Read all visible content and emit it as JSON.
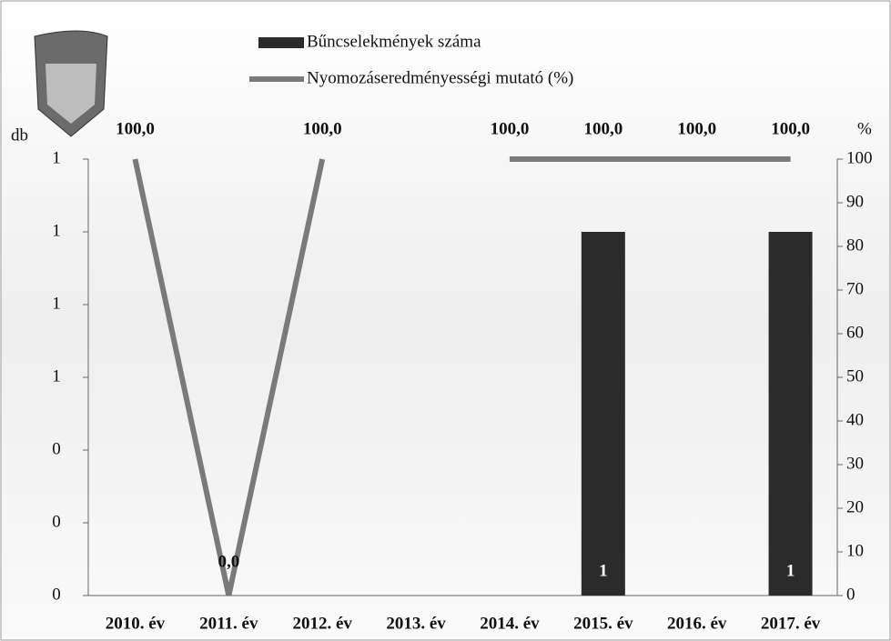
{
  "chart_data": {
    "type": "bar",
    "categories": [
      "2010. év",
      "2011. év",
      "2012. év",
      "2013. év",
      "2014. év",
      "2015. év",
      "2016. év",
      "2017. év"
    ],
    "series": [
      {
        "name": "Bűncselekmények száma",
        "color": "#2b2b2b",
        "values": [
          0,
          0,
          0,
          0,
          0,
          1,
          0,
          1
        ],
        "value_labels": [
          null,
          null,
          null,
          null,
          null,
          "1",
          null,
          "1"
        ]
      },
      {
        "name": "Nyomozáseredményességi mutató (%)",
        "type": "line",
        "axis": "y2",
        "color": "#7a7a7a",
        "values": [
          100,
          0,
          100,
          null,
          100,
          100,
          100,
          100
        ],
        "value_labels": [
          "100,0",
          "0,0",
          "100,0",
          null,
          "100,0",
          "100,0",
          "100,0",
          "100,0"
        ]
      }
    ],
    "ylabel": "db",
    "y2label": "%",
    "ylim": [
      0,
      1.2
    ],
    "yticks": [
      {
        "value": 0,
        "label": "0"
      },
      {
        "value": 0.2,
        "label": "0"
      },
      {
        "value": 0.4,
        "label": "0"
      },
      {
        "value": 0.6,
        "label": "1"
      },
      {
        "value": 0.8,
        "label": "1"
      },
      {
        "value": 1.0,
        "label": "1"
      },
      {
        "value": 1.2,
        "label": "1"
      }
    ],
    "y2lim": [
      0,
      100
    ],
    "y2ticks": [
      0,
      10,
      20,
      30,
      40,
      50,
      60,
      70,
      80,
      90,
      100
    ],
    "legend": "top"
  }
}
